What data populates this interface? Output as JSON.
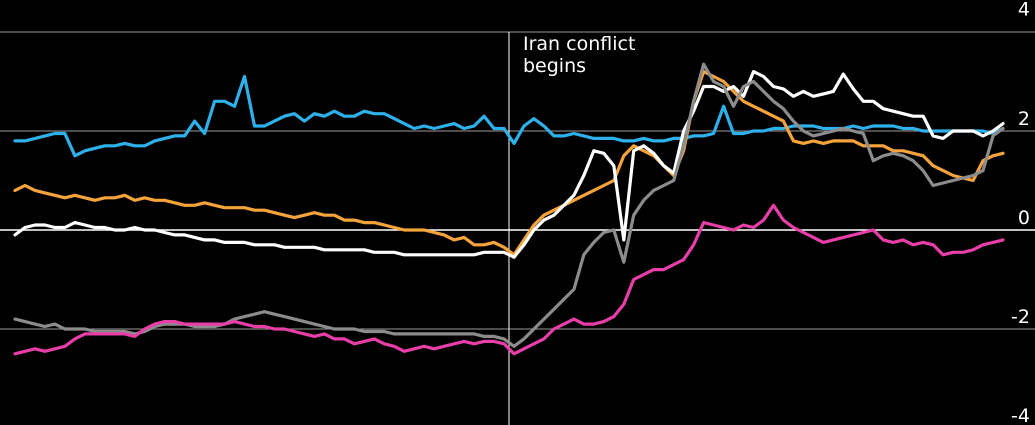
{
  "chart_data": {
    "type": "line",
    "title": "",
    "xlabel": "",
    "ylabel": "",
    "ylim": [
      -4,
      4
    ],
    "xlim": [
      0,
      100
    ],
    "yticks": [
      4,
      2,
      0,
      -2,
      -4
    ],
    "ytick_labels": [
      "4",
      "2",
      "0",
      "-2",
      "-4"
    ],
    "grid": true,
    "legend": "none",
    "annotation": {
      "x": 50,
      "lines": [
        "Iran conflict",
        "begins"
      ]
    },
    "series": [
      {
        "color": "#2eb1ea",
        "values": [
          1.8,
          1.8,
          1.85,
          1.9,
          1.95,
          1.95,
          1.5,
          1.6,
          1.65,
          1.7,
          1.7,
          1.75,
          1.7,
          1.7,
          1.8,
          1.85,
          1.9,
          1.9,
          2.2,
          1.95,
          2.6,
          2.6,
          2.5,
          3.1,
          2.1,
          2.1,
          2.2,
          2.3,
          2.35,
          2.2,
          2.35,
          2.3,
          2.4,
          2.3,
          2.3,
          2.4,
          2.35,
          2.35,
          2.25,
          2.15,
          2.05,
          2.1,
          2.05,
          2.1,
          2.15,
          2.05,
          2.1,
          2.3,
          2.05,
          2.05,
          1.75,
          2.1,
          2.25,
          2.1,
          1.9,
          1.9,
          1.95,
          1.9,
          1.85,
          1.85,
          1.85,
          1.8,
          1.8,
          1.85,
          1.8,
          1.8,
          1.85,
          1.85,
          1.9,
          1.9,
          1.95,
          2.5,
          1.95,
          1.95,
          2.0,
          2.0,
          2.05,
          2.05,
          2.1,
          2.1,
          2.1,
          2.05,
          2.05,
          2.05,
          2.1,
          2.05,
          2.1,
          2.1,
          2.1,
          2.05,
          2.05,
          2.0,
          2.0,
          2.0,
          2.0,
          2.0,
          2.0,
          2.0,
          1.95,
          2.05
        ]
      },
      {
        "color": "#f5a33b",
        "values": [
          0.8,
          0.9,
          0.8,
          0.75,
          0.7,
          0.65,
          0.7,
          0.65,
          0.6,
          0.65,
          0.65,
          0.7,
          0.6,
          0.65,
          0.6,
          0.6,
          0.55,
          0.5,
          0.5,
          0.55,
          0.5,
          0.45,
          0.45,
          0.45,
          0.4,
          0.4,
          0.35,
          0.3,
          0.25,
          0.3,
          0.35,
          0.3,
          0.3,
          0.2,
          0.2,
          0.15,
          0.15,
          0.1,
          0.05,
          0.0,
          0.0,
          0.0,
          -0.05,
          -0.1,
          -0.2,
          -0.15,
          -0.3,
          -0.3,
          -0.25,
          -0.35,
          -0.5,
          -0.2,
          0.1,
          0.3,
          0.4,
          0.5,
          0.6,
          0.7,
          0.8,
          0.9,
          1.0,
          1.5,
          1.7,
          1.6,
          1.5,
          1.3,
          1.1,
          1.6,
          2.6,
          3.2,
          3.1,
          3.0,
          2.8,
          2.6,
          2.5,
          2.4,
          2.3,
          2.2,
          1.8,
          1.75,
          1.8,
          1.75,
          1.8,
          1.8,
          1.8,
          1.7,
          1.7,
          1.7,
          1.6,
          1.6,
          1.55,
          1.5,
          1.3,
          1.2,
          1.1,
          1.05,
          1.0,
          1.4,
          1.5,
          1.55
        ]
      },
      {
        "color": "#ffffff",
        "values": [
          -0.1,
          0.05,
          0.1,
          0.1,
          0.05,
          0.05,
          0.15,
          0.1,
          0.05,
          0.05,
          0.0,
          0.0,
          0.05,
          0.0,
          0.0,
          -0.05,
          -0.1,
          -0.1,
          -0.15,
          -0.2,
          -0.2,
          -0.25,
          -0.25,
          -0.25,
          -0.3,
          -0.3,
          -0.3,
          -0.35,
          -0.35,
          -0.35,
          -0.35,
          -0.4,
          -0.4,
          -0.4,
          -0.4,
          -0.4,
          -0.45,
          -0.45,
          -0.45,
          -0.5,
          -0.5,
          -0.5,
          -0.5,
          -0.5,
          -0.5,
          -0.5,
          -0.5,
          -0.45,
          -0.45,
          -0.45,
          -0.55,
          -0.3,
          0.0,
          0.2,
          0.3,
          0.5,
          0.7,
          1.1,
          1.6,
          1.55,
          1.3,
          -0.2,
          1.6,
          1.7,
          1.55,
          1.3,
          1.15,
          2.0,
          2.4,
          2.9,
          2.9,
          2.8,
          2.9,
          2.7,
          3.2,
          3.1,
          2.9,
          2.85,
          2.7,
          2.8,
          2.7,
          2.75,
          2.8,
          3.15,
          2.85,
          2.6,
          2.6,
          2.45,
          2.4,
          2.35,
          2.3,
          2.3,
          1.9,
          1.85,
          2.0,
          2.0,
          2.0,
          1.9,
          2.0,
          2.15
        ]
      },
      {
        "color": "#8c8c8c",
        "values": [
          -1.8,
          -1.85,
          -1.9,
          -1.95,
          -1.9,
          -2.0,
          -2.0,
          -2.0,
          -2.05,
          -2.05,
          -2.05,
          -2.05,
          -2.1,
          -2.05,
          -1.95,
          -1.9,
          -1.9,
          -1.9,
          -1.95,
          -1.95,
          -1.95,
          -1.9,
          -1.8,
          -1.75,
          -1.7,
          -1.65,
          -1.7,
          -1.75,
          -1.8,
          -1.85,
          -1.9,
          -1.95,
          -2.0,
          -2.0,
          -2.0,
          -2.05,
          -2.05,
          -2.05,
          -2.1,
          -2.1,
          -2.1,
          -2.1,
          -2.1,
          -2.1,
          -2.1,
          -2.1,
          -2.1,
          -2.15,
          -2.15,
          -2.2,
          -2.35,
          -2.2,
          -2.0,
          -1.8,
          -1.6,
          -1.4,
          -1.2,
          -0.5,
          -0.25,
          -0.05,
          0.0,
          -0.65,
          0.3,
          0.6,
          0.8,
          0.9,
          1.0,
          1.7,
          2.6,
          3.35,
          3.0,
          2.9,
          2.5,
          2.9,
          3.0,
          2.8,
          2.6,
          2.45,
          2.2,
          2.0,
          1.9,
          1.95,
          2.0,
          2.05,
          2.0,
          1.95,
          1.4,
          1.5,
          1.55,
          1.5,
          1.4,
          1.2,
          0.9,
          0.95,
          1.0,
          1.05,
          1.1,
          1.2,
          1.9,
          2.05
        ]
      },
      {
        "color": "#e83ea8",
        "values": [
          -2.5,
          -2.45,
          -2.4,
          -2.45,
          -2.4,
          -2.35,
          -2.2,
          -2.1,
          -2.1,
          -2.1,
          -2.1,
          -2.1,
          -2.15,
          -2.0,
          -1.9,
          -1.85,
          -1.85,
          -1.9,
          -1.9,
          -1.9,
          -1.9,
          -1.9,
          -1.85,
          -1.9,
          -1.95,
          -1.95,
          -2.0,
          -2.0,
          -2.05,
          -2.1,
          -2.15,
          -2.1,
          -2.2,
          -2.2,
          -2.3,
          -2.25,
          -2.2,
          -2.3,
          -2.35,
          -2.45,
          -2.4,
          -2.35,
          -2.4,
          -2.35,
          -2.3,
          -2.25,
          -2.3,
          -2.25,
          -2.25,
          -2.3,
          -2.5,
          -2.4,
          -2.3,
          -2.2,
          -2.0,
          -1.9,
          -1.8,
          -1.9,
          -1.9,
          -1.85,
          -1.75,
          -1.5,
          -1.0,
          -0.9,
          -0.8,
          -0.8,
          -0.7,
          -0.6,
          -0.3,
          0.15,
          0.1,
          0.05,
          0.0,
          0.1,
          0.05,
          0.2,
          0.5,
          0.2,
          0.05,
          -0.05,
          -0.15,
          -0.25,
          -0.2,
          -0.15,
          -0.1,
          -0.05,
          0.0,
          -0.2,
          -0.25,
          -0.2,
          -0.3,
          -0.25,
          -0.3,
          -0.5,
          -0.45,
          -0.45,
          -0.4,
          -0.3,
          -0.25,
          -0.2
        ]
      }
    ]
  }
}
